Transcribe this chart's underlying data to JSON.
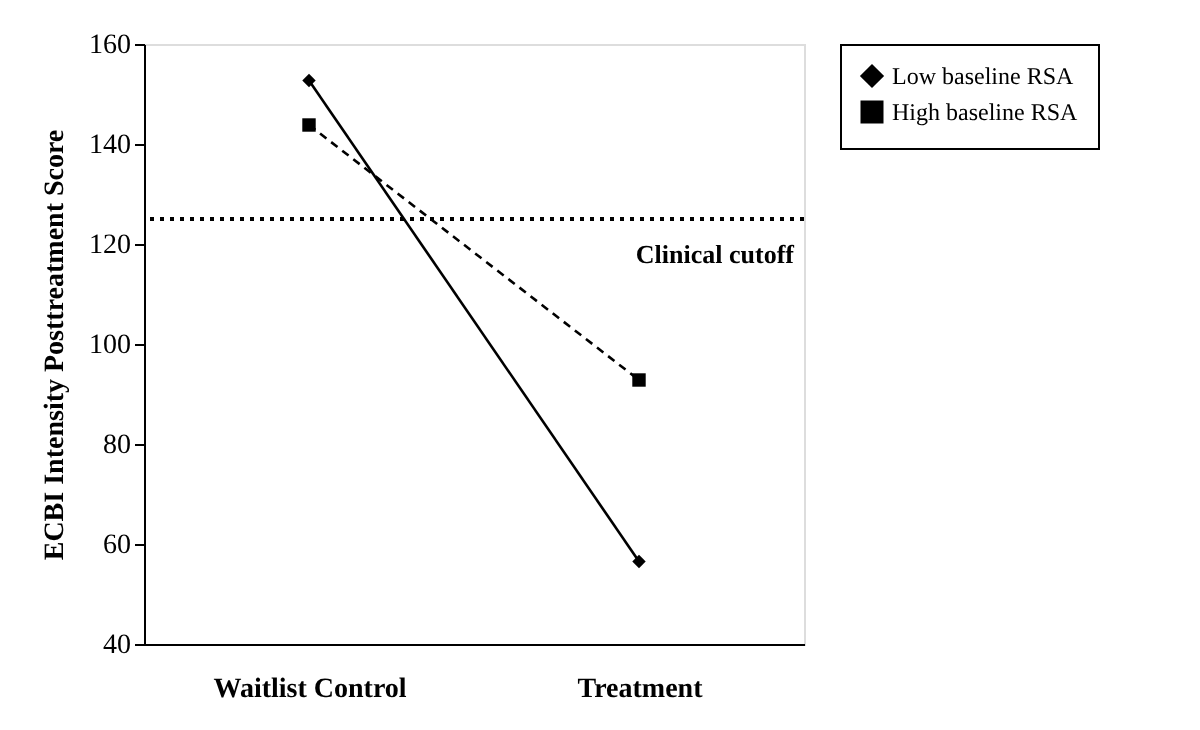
{
  "chart_data": {
    "type": "line",
    "ylabel": "ECBI Intensity Posttreatment Score",
    "categories": [
      "Waitlist Control",
      "Treatment"
    ],
    "series": [
      {
        "name": "Low baseline RSA",
        "color": "#000000",
        "values": [
          152.7,
          56.5
        ],
        "marker": "diamond",
        "line_style": "solid"
      },
      {
        "name": "High baseline RSA",
        "color": "#000000",
        "values": [
          143.8,
          92.8
        ],
        "marker": "square",
        "line_style": "dashed"
      }
    ],
    "ylim": [
      40,
      160
    ],
    "yticks": [
      40,
      60,
      80,
      100,
      120,
      140,
      160
    ],
    "ref_lines": [
      {
        "axis": "y",
        "value": 125,
        "label": "Clinical cutoff",
        "line_style": "dotted"
      }
    ],
    "grid": false,
    "legend": "right"
  }
}
